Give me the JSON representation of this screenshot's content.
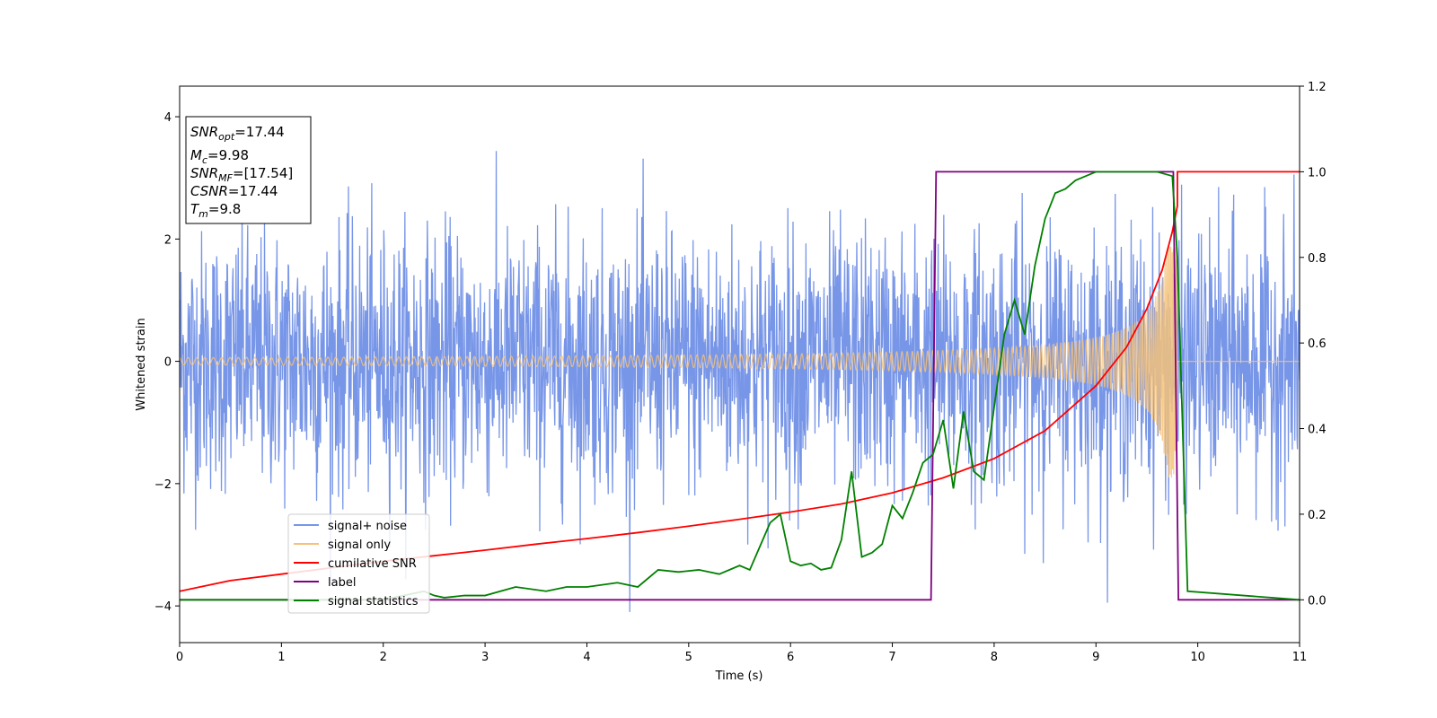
{
  "chart_data": {
    "type": "line",
    "xlabel": "Time (s)",
    "ylabel": "Whitened strain",
    "xlim": [
      0,
      11
    ],
    "ylim": [
      -4.6,
      4.5
    ],
    "y2lim": [
      -0.1,
      1.2
    ],
    "x_ticks": [
      0,
      1,
      2,
      3,
      4,
      5,
      6,
      7,
      8,
      9,
      10,
      11
    ],
    "y_ticks": [
      -4,
      -2,
      0,
      2,
      4
    ],
    "y2_ticks": [
      "0.0",
      "0.2",
      "0.4",
      "0.6",
      "0.8",
      "1.0",
      "1.2"
    ],
    "grid": false,
    "legend_position": "lower-left",
    "info_box": {
      "snr_opt": {
        "main": "SNR",
        "sub": "opt",
        "value": "=17.44"
      },
      "mc": {
        "main": "M",
        "sub": "c",
        "value": "=9.98"
      },
      "snr_mf": {
        "main": "SNR",
        "sub": "MF",
        "value": "=[17.54]"
      },
      "csnr": {
        "main": "CSNR",
        "sub": "",
        "value": "=17.44"
      },
      "tm": {
        "main": "T",
        "sub": "m",
        "value": "=9.8"
      }
    },
    "series": [
      {
        "name": "signal+ noise",
        "axis": "left",
        "color": "#7896e8",
        "kind": "noise",
        "noise_std": 1.05,
        "noise_max_abs": 4.1,
        "x_range": [
          0,
          11
        ]
      },
      {
        "name": "signal only",
        "axis": "left",
        "color": "#f5c27a",
        "kind": "chirp",
        "merger_time": 9.8,
        "peak_amplitude": 1.9,
        "base_amplitude": 0.06,
        "x_range": [
          0,
          11
        ]
      },
      {
        "name": "cumilative SNR",
        "axis": "right",
        "color": "#ff0000",
        "x": [
          0,
          0.5,
          1,
          1.5,
          2,
          2.5,
          3,
          3.5,
          4,
          4.5,
          5,
          5.5,
          6,
          6.5,
          7,
          7.5,
          8,
          8.5,
          9,
          9.3,
          9.5,
          9.65,
          9.75,
          9.8,
          9.8,
          10,
          11
        ],
        "y": [
          0.02,
          0.045,
          0.06,
          0.075,
          0.09,
          0.103,
          0.116,
          0.13,
          0.143,
          0.157,
          0.172,
          0.188,
          0.205,
          0.224,
          0.25,
          0.285,
          0.33,
          0.395,
          0.5,
          0.59,
          0.68,
          0.77,
          0.86,
          0.92,
          1.0,
          1.0,
          1.0
        ]
      },
      {
        "name": "label",
        "axis": "right",
        "color": "#800080",
        "x": [
          0,
          7.38,
          7.43,
          9.76,
          9.81,
          11
        ],
        "y": [
          0,
          0,
          1,
          1,
          0,
          0
        ]
      },
      {
        "name": "signal statistics",
        "axis": "right",
        "color": "#008000",
        "x": [
          0,
          2,
          2.4,
          2.5,
          2.6,
          2.8,
          3,
          3.3,
          3.6,
          3.8,
          4,
          4.3,
          4.5,
          4.7,
          4.9,
          5.1,
          5.3,
          5.5,
          5.6,
          5.8,
          5.9,
          6.0,
          6.1,
          6.2,
          6.3,
          6.4,
          6.5,
          6.6,
          6.7,
          6.8,
          6.9,
          7.0,
          7.1,
          7.2,
          7.3,
          7.4,
          7.5,
          7.6,
          7.7,
          7.8,
          7.9,
          8.0,
          8.1,
          8.2,
          8.3,
          8.4,
          8.5,
          8.6,
          8.7,
          8.8,
          8.9,
          9.0,
          9.2,
          9.4,
          9.6,
          9.75,
          9.8,
          9.9,
          11
        ],
        "y": [
          0.0,
          0.0,
          0.02,
          0.01,
          0.005,
          0.01,
          0.01,
          0.03,
          0.02,
          0.03,
          0.03,
          0.04,
          0.03,
          0.07,
          0.065,
          0.07,
          0.06,
          0.08,
          0.07,
          0.18,
          0.2,
          0.09,
          0.08,
          0.085,
          0.07,
          0.075,
          0.14,
          0.3,
          0.1,
          0.11,
          0.13,
          0.22,
          0.19,
          0.25,
          0.32,
          0.34,
          0.42,
          0.26,
          0.44,
          0.3,
          0.28,
          0.45,
          0.62,
          0.7,
          0.62,
          0.78,
          0.89,
          0.95,
          0.96,
          0.98,
          0.99,
          1.0,
          1.0,
          1.0,
          1.0,
          0.99,
          0.8,
          0.02,
          0.0
        ]
      }
    ]
  }
}
